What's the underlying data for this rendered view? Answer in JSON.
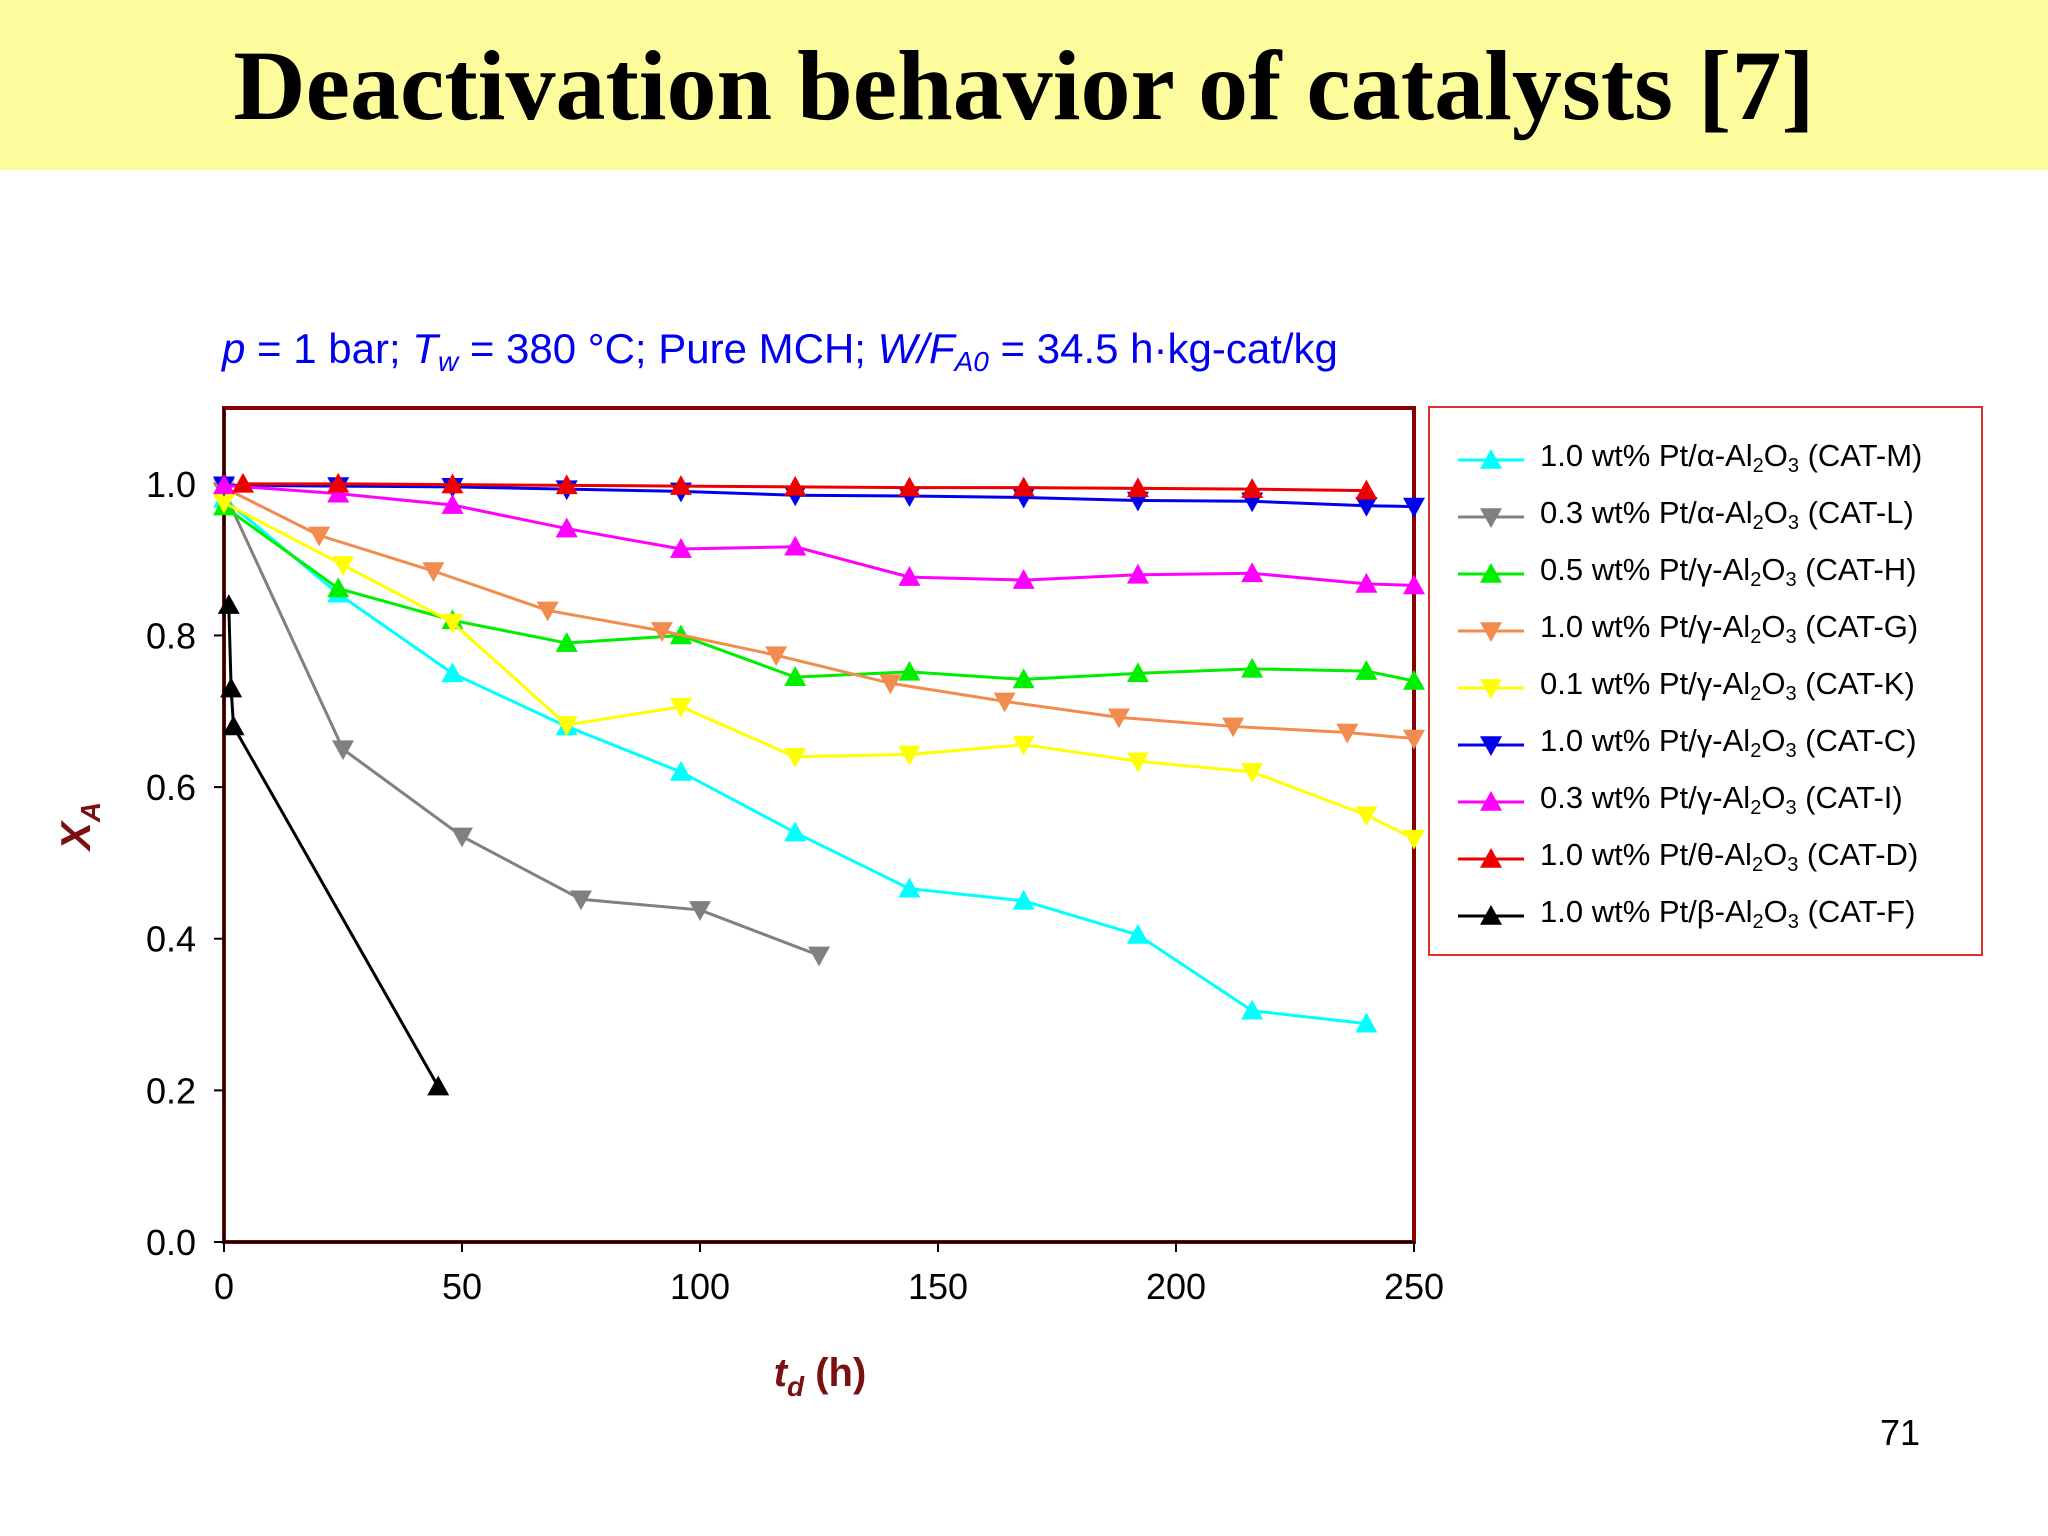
{
  "slide": {
    "title": "Deactivation behavior of catalysts [7]",
    "page_number": "71",
    "conditions": {
      "p_sym": "p",
      "p_val": " = 1 bar; ",
      "T_sym": "T",
      "T_sub": "w",
      "T_val": " = 380 °C; Pure MCH; ",
      "W_sym": "W",
      "slash": "/",
      "F_sym": "F",
      "F_sub": "A0",
      "WF_val": " = 34.5 h·kg-cat/kg"
    }
  },
  "chart_data": {
    "type": "line",
    "xlabel": {
      "symbol": "t",
      "sub": "d",
      "unit": " (h)"
    },
    "ylabel": {
      "symbol": "X",
      "sub": "A"
    },
    "xlim": [
      0,
      250
    ],
    "ylim": [
      0,
      1.1
    ],
    "xticks": [
      "0",
      "50",
      "100",
      "150",
      "200",
      "250"
    ],
    "yticks": [
      "0.0",
      "0.2",
      "0.4",
      "0.6",
      "0.8",
      "1.0"
    ],
    "grid": false,
    "legend_position": "right",
    "colors": {
      "frame": "#8b0000",
      "axis_text": "#7a1010",
      "conditions": "#0000ee",
      "legend_border": "#e03030"
    },
    "series": [
      {
        "pre": "1.0 wt% Pt/",
        "greek": "α",
        "support": "-Al",
        "s1": "2",
        "o": "O",
        "s2": "3",
        "code": " (CAT-M)",
        "color": "#00ffff",
        "marker": "up",
        "x": [
          0,
          24,
          48,
          72,
          96,
          120,
          144,
          168,
          192,
          216,
          240
        ],
        "y": [
          0.98,
          0.855,
          0.75,
          0.68,
          0.62,
          0.54,
          0.466,
          0.45,
          0.405,
          0.305,
          0.288
        ]
      },
      {
        "pre": "0.3 wt% Pt/",
        "greek": "α",
        "support": "-Al",
        "s1": "2",
        "o": "O",
        "s2": "3",
        "code": " (CAT-L)",
        "color": "#808080",
        "marker": "down",
        "x": [
          0,
          25,
          50,
          75,
          100,
          125
        ],
        "y": [
          0.99,
          0.65,
          0.535,
          0.452,
          0.438,
          0.378
        ]
      },
      {
        "pre": "0.5 wt% Pt/",
        "greek": "γ",
        "support": "-Al",
        "s1": "2",
        "o": "O",
        "s2": "3",
        "code": " (CAT-H)",
        "color": "#00ee00",
        "marker": "up",
        "x": [
          0,
          24,
          48,
          72,
          96,
          120,
          144,
          168,
          192,
          216,
          240,
          250
        ],
        "y": [
          0.97,
          0.862,
          0.82,
          0.79,
          0.8,
          0.745,
          0.752,
          0.742,
          0.75,
          0.756,
          0.753,
          0.74
        ]
      },
      {
        "pre": "1.0 wt% Pt/",
        "greek": "γ",
        "support": "-Al",
        "s1": "2",
        "o": "O",
        "s2": "3",
        "code": " (CAT-G)",
        "color": "#f28c4e",
        "marker": "down",
        "x": [
          0,
          20,
          44,
          68,
          92,
          116,
          140,
          164,
          188,
          212,
          236,
          250
        ],
        "y": [
          0.995,
          0.932,
          0.885,
          0.833,
          0.806,
          0.774,
          0.737,
          0.713,
          0.692,
          0.68,
          0.672,
          0.664
        ]
      },
      {
        "pre": "0.1 wt% Pt/",
        "greek": "γ",
        "support": "-Al",
        "s1": "2",
        "o": "O",
        "s2": "3",
        "code": " (CAT-K)",
        "color": "#ffff00",
        "marker": "down",
        "x": [
          0,
          25,
          48,
          72,
          96,
          120,
          144,
          168,
          192,
          216,
          240,
          250
        ],
        "y": [
          0.975,
          0.893,
          0.817,
          0.682,
          0.706,
          0.64,
          0.643,
          0.656,
          0.634,
          0.62,
          0.563,
          0.532
        ]
      },
      {
        "pre": "1.0 wt% Pt/",
        "greek": "γ",
        "support": "-Al",
        "s1": "2",
        "o": "O",
        "s2": "3",
        "code": " (CAT-C)",
        "color": "#0000ee",
        "marker": "down",
        "x": [
          0,
          24,
          48,
          72,
          96,
          120,
          144,
          168,
          192,
          216,
          240,
          250
        ],
        "y": [
          0.998,
          0.997,
          0.996,
          0.993,
          0.99,
          0.985,
          0.984,
          0.982,
          0.978,
          0.977,
          0.971,
          0.97
        ]
      },
      {
        "pre": "0.3 wt% Pt/",
        "greek": "γ",
        "support": "-Al",
        "s1": "2",
        "o": "O",
        "s2": "3",
        "code": " (CAT-I)",
        "color": "#ff00ff",
        "marker": "up",
        "x": [
          0,
          24,
          48,
          72,
          96,
          120,
          144,
          168,
          192,
          216,
          240,
          250
        ],
        "y": [
          0.998,
          0.987,
          0.972,
          0.941,
          0.914,
          0.917,
          0.877,
          0.873,
          0.88,
          0.882,
          0.868,
          0.866
        ]
      },
      {
        "pre": "1.0 wt% Pt/",
        "greek": "θ",
        "support": "-Al",
        "s1": "2",
        "o": "O",
        "s2": "3",
        "code": " (CAT-D)",
        "color": "#ee0000",
        "marker": "up",
        "x": [
          4,
          24,
          48,
          72,
          96,
          120,
          144,
          168,
          192,
          216,
          240
        ],
        "y": [
          1.0,
          1.0,
          0.999,
          0.998,
          0.997,
          0.996,
          0.995,
          0.995,
          0.994,
          0.993,
          0.991
        ]
      },
      {
        "pre": "1.0 wt% Pt/",
        "greek": "β",
        "support": "-Al",
        "s1": "2",
        "o": "O",
        "s2": "3",
        "code": " (CAT-F)",
        "color": "#000000",
        "marker": "up",
        "x": [
          1,
          1.5,
          2,
          45
        ],
        "y": [
          0.84,
          0.73,
          0.68,
          0.205
        ]
      }
    ]
  }
}
